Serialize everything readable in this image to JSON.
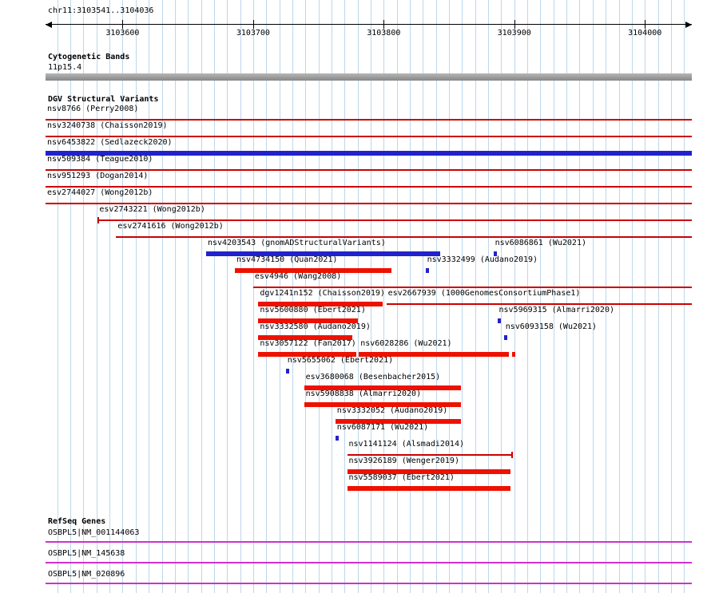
{
  "ruler": {
    "title": "chr11:3103541..3104036",
    "chrom": "chr11",
    "start": 3103541,
    "end": 3104036,
    "grid_step": 10,
    "ticks": [
      {
        "pos": 3103600,
        "label": "3103600"
      },
      {
        "pos": 3103700,
        "label": "3103700"
      },
      {
        "pos": 3103800,
        "label": "3103800"
      },
      {
        "pos": 3103900,
        "label": "3103900"
      },
      {
        "pos": 3104000,
        "label": "3104000"
      }
    ]
  },
  "cytoband": {
    "title": "Cytogenetic Bands",
    "band_label": "11p15.4"
  },
  "dgv": {
    "title": "DGV Structural Variants",
    "rows": [
      {
        "items": [
          {
            "label": "nsv8766 (Perry2008)",
            "type": "line",
            "color": "red",
            "start": 3103541,
            "end": 3104036
          }
        ]
      },
      {
        "items": [
          {
            "label": "nsv3240738 (Chaisson2019)",
            "type": "line",
            "color": "red",
            "start": 3103541,
            "end": 3104036
          }
        ]
      },
      {
        "items": [
          {
            "label": "nsv6453822 (Sedlazeck2020)",
            "type": "bar",
            "color": "blue",
            "start": 3103541,
            "end": 3104036
          }
        ]
      },
      {
        "items": [
          {
            "label": "nsv509384 (Teague2010)",
            "type": "line",
            "color": "red",
            "start": 3103541,
            "end": 3104036
          }
        ]
      },
      {
        "items": [
          {
            "label": "nsv951293 (Dogan2014)",
            "type": "line",
            "color": "red",
            "start": 3103541,
            "end": 3104036
          }
        ]
      },
      {
        "items": [
          {
            "label": "esv2744027 (Wong2012b)",
            "type": "line",
            "color": "red",
            "start": 3103541,
            "end": 3104036
          }
        ]
      },
      {
        "items": [
          {
            "label": "esv2743221 (Wong2012b)",
            "type": "line",
            "color": "red",
            "start": 3103581,
            "end": 3104036,
            "cap": "left"
          }
        ]
      },
      {
        "items": [
          {
            "label": "esv2741616 (Wong2012b)",
            "type": "line",
            "color": "red",
            "start": 3103595,
            "end": 3104036
          }
        ]
      },
      {
        "items": [
          {
            "label": "nsv4203543 (gnomADStructuralVariants)",
            "type": "bar",
            "color": "blue",
            "start": 3103664,
            "end": 3103843
          },
          {
            "label": "nsv6086861 (Wu2021)",
            "type": "tick",
            "color": "blue",
            "start": 3103884
          }
        ]
      },
      {
        "items": [
          {
            "label": "nsv4734150 (Quan2021)",
            "type": "bar",
            "color": "red",
            "start": 3103686,
            "end": 3103806
          },
          {
            "label": "nsv3332499 (Audano2019)",
            "type": "tick",
            "color": "blue",
            "start": 3103832
          }
        ]
      },
      {
        "items": [
          {
            "label": "esv4946 (Wang2008)",
            "type": "line",
            "color": "red",
            "start": 3103700,
            "end": 3104036
          }
        ]
      },
      {
        "items": [
          {
            "label": "dgv1241n152 (Chaisson2019)",
            "type": "bar",
            "color": "red",
            "start": 3103704,
            "end": 3103799
          },
          {
            "label": "esv2667939 (1000GenomesConsortiumPhase1)",
            "type": "line",
            "color": "red",
            "start": 3103802,
            "end": 3104036
          }
        ]
      },
      {
        "items": [
          {
            "label": "nsv5600880 (Ebert2021)",
            "type": "bar",
            "color": "red",
            "start": 3103704,
            "end": 3103780
          },
          {
            "label": "nsv5969315 (Almarri2020)",
            "type": "tick",
            "color": "blue",
            "start": 3103887
          }
        ]
      },
      {
        "items": [
          {
            "label": "nsv3332580 (Audano2019)",
            "type": "bar",
            "color": "red",
            "start": 3103704,
            "end": 3103776
          },
          {
            "label": "nsv6093158 (Wu2021)",
            "type": "tick",
            "color": "blue",
            "start": 3103892
          }
        ]
      },
      {
        "items": [
          {
            "label": "nsv3057122 (Fan2017)",
            "type": "bar",
            "color": "red",
            "start": 3103704,
            "end": 3103779
          },
          {
            "label": "nsv6028286 (Wu2021)",
            "type": "bar",
            "color": "red",
            "start": 3103781,
            "end": 3103896
          },
          {
            "label": "",
            "type": "tick",
            "color": "red",
            "start": 3103898
          }
        ]
      },
      {
        "items": [
          {
            "label": "nsv5655062 (Ebert2021)",
            "type": "tick",
            "color": "blue",
            "start": 3103725
          }
        ]
      },
      {
        "items": [
          {
            "label": "esv3680068 (Besenbacher2015)",
            "type": "bar",
            "color": "red",
            "start": 3103739,
            "end": 3103859
          }
        ]
      },
      {
        "items": [
          {
            "label": "nsv5908838 (Almarri2020)",
            "type": "bar",
            "color": "red",
            "start": 3103739,
            "end": 3103859
          }
        ]
      },
      {
        "items": [
          {
            "label": "nsv3332052 (Audano2019)",
            "type": "bar",
            "color": "red",
            "start": 3103763,
            "end": 3103859
          }
        ]
      },
      {
        "items": [
          {
            "label": "nsv6087171 (Wu2021)",
            "type": "tick",
            "color": "blue",
            "start": 3103763
          }
        ]
      },
      {
        "items": [
          {
            "label": "nsv1141124 (Alsmadi2014)",
            "type": "line",
            "color": "red",
            "start": 3103772,
            "end": 3103898,
            "cap": "right"
          }
        ]
      },
      {
        "items": [
          {
            "label": "nsv3926189 (Wenger2019)",
            "type": "bar",
            "color": "red",
            "start": 3103772,
            "end": 3103897
          }
        ]
      },
      {
        "items": [
          {
            "label": "nsv5589037 (Ebert2021)",
            "type": "bar",
            "color": "red",
            "start": 3103772,
            "end": 3103897
          }
        ]
      }
    ]
  },
  "refseq": {
    "title": "RefSeq Genes",
    "genes": [
      {
        "label": "OSBPL5|NM_001144063"
      },
      {
        "label": "OSBPL5|NM_145638"
      },
      {
        "label": "OSBPL5|NM_020896"
      }
    ]
  },
  "colors": {
    "grid": "#bdd7eb",
    "red_line": "#cc0000",
    "red_bar": "#ee1100",
    "blue_bar": "#2222cc",
    "gene_line": "#cc33cc",
    "band_top": "#b6b6b6",
    "band_bottom": "#878787",
    "text": "#000000"
  }
}
